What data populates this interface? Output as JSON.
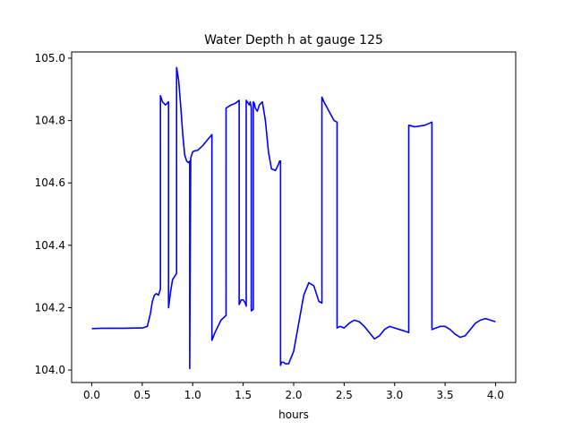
{
  "chart_data": {
    "type": "line",
    "title": "Water Depth h at gauge 125",
    "xlabel": "hours",
    "ylabel": "",
    "xlim": [
      -0.2,
      4.2
    ],
    "ylim": [
      103.96,
      105.02
    ],
    "xticks": [
      0.0,
      0.5,
      1.0,
      1.5,
      2.0,
      2.5,
      3.0,
      3.5,
      4.0
    ],
    "xtick_labels": [
      "0.0",
      "0.5",
      "1.0",
      "1.5",
      "2.0",
      "2.5",
      "3.0",
      "3.5",
      "4.0"
    ],
    "yticks": [
      104.0,
      104.2,
      104.4,
      104.6,
      104.8,
      105.0
    ],
    "ytick_labels": [
      "104.0",
      "104.2",
      "104.4",
      "104.6",
      "104.8",
      "105.0"
    ],
    "grid": false,
    "series": [
      {
        "color": "#0000ff",
        "x": [
          0.0,
          0.1,
          0.3,
          0.5,
          0.55,
          0.58,
          0.6,
          0.62,
          0.64,
          0.66,
          0.68,
          0.68,
          0.7,
          0.73,
          0.76,
          0.76,
          0.78,
          0.8,
          0.82,
          0.84,
          0.84,
          0.86,
          0.88,
          0.9,
          0.92,
          0.94,
          0.96,
          0.97,
          0.97,
          0.98,
          1.0,
          1.02,
          1.05,
          1.1,
          1.15,
          1.19,
          1.19,
          1.22,
          1.28,
          1.33,
          1.33,
          1.38,
          1.42,
          1.46,
          1.46,
          1.48,
          1.5,
          1.52,
          1.53,
          1.53,
          1.56,
          1.57,
          1.58,
          1.58,
          1.6,
          1.6,
          1.61,
          1.62,
          1.64,
          1.66,
          1.69,
          1.72,
          1.75,
          1.78,
          1.82,
          1.85,
          1.86,
          1.87,
          1.87,
          1.88,
          1.9,
          1.92,
          1.95,
          2.0,
          2.05,
          2.1,
          2.15,
          2.2,
          2.25,
          2.28,
          2.28,
          2.3,
          2.35,
          2.4,
          2.43,
          2.43,
          2.46,
          2.5,
          2.55,
          2.6,
          2.65,
          2.7,
          2.75,
          2.8,
          2.85,
          2.9,
          2.95,
          3.0,
          3.05,
          3.1,
          3.14,
          3.14,
          3.2,
          3.3,
          3.37,
          3.37,
          3.45,
          3.5,
          3.55,
          3.6,
          3.65,
          3.7,
          3.75,
          3.8,
          3.85,
          3.9,
          3.95,
          4.0
        ],
        "y": [
          104.133,
          104.134,
          104.134,
          104.135,
          104.14,
          104.18,
          104.22,
          104.24,
          104.245,
          104.24,
          104.26,
          104.88,
          104.86,
          104.85,
          104.86,
          104.2,
          104.25,
          104.29,
          104.3,
          104.31,
          104.97,
          104.93,
          104.85,
          104.76,
          104.69,
          104.67,
          104.665,
          104.67,
          104.005,
          104.68,
          104.7,
          104.703,
          104.705,
          104.72,
          104.74,
          104.755,
          104.095,
          104.12,
          104.16,
          104.175,
          104.84,
          104.85,
          104.855,
          104.865,
          104.21,
          104.225,
          104.225,
          104.215,
          104.205,
          104.865,
          104.85,
          104.86,
          104.84,
          104.19,
          104.195,
          104.86,
          104.855,
          104.84,
          104.83,
          104.85,
          104.86,
          104.8,
          104.7,
          104.645,
          104.64,
          104.66,
          104.67,
          104.67,
          104.015,
          104.025,
          104.025,
          104.02,
          104.02,
          104.06,
          104.15,
          104.24,
          104.28,
          104.27,
          104.22,
          104.215,
          104.875,
          104.86,
          104.83,
          104.8,
          104.795,
          104.135,
          104.14,
          104.135,
          104.15,
          104.16,
          104.155,
          104.14,
          104.12,
          104.1,
          104.11,
          104.13,
          104.14,
          104.135,
          104.13,
          104.125,
          104.12,
          104.785,
          104.78,
          104.785,
          104.795,
          104.13,
          104.14,
          104.14,
          104.13,
          104.115,
          104.105,
          104.11,
          104.13,
          104.15,
          104.16,
          104.165,
          104.16,
          104.155
        ]
      }
    ]
  }
}
